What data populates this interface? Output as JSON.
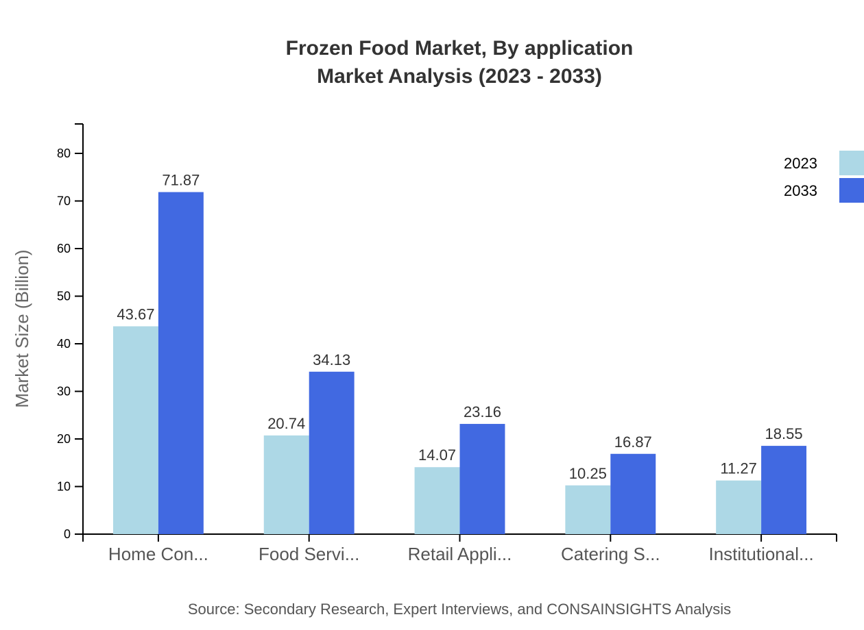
{
  "title": {
    "line1": "Frozen Food Market, By application",
    "line2": "Market Analysis (2023 - 2033)"
  },
  "source": "Source: Secondary Research, Expert Interviews, and CONSAINSIGHTS Analysis",
  "colors": {
    "2023": "#add8e6",
    "2033": "#4169e1"
  },
  "chart_data": {
    "type": "bar",
    "title": "Frozen Food Market, By application Market Analysis (2023 - 2033)",
    "xlabel": "",
    "ylabel": "Market Size (Billion)",
    "ylim": [
      0,
      86
    ],
    "yticks": [
      0,
      10,
      20,
      30,
      40,
      50,
      60,
      70,
      80
    ],
    "grid": false,
    "legend_position": "top-right",
    "categories": [
      "Home Con...",
      "Food Servi...",
      "Retail Appli...",
      "Catering S...",
      "Institutional..."
    ],
    "series": [
      {
        "name": "2023",
        "color": "#add8e6",
        "values": [
          43.67,
          20.74,
          14.07,
          10.25,
          11.27
        ]
      },
      {
        "name": "2033",
        "color": "#4169e1",
        "values": [
          71.87,
          34.13,
          23.16,
          16.87,
          18.55
        ]
      }
    ]
  }
}
